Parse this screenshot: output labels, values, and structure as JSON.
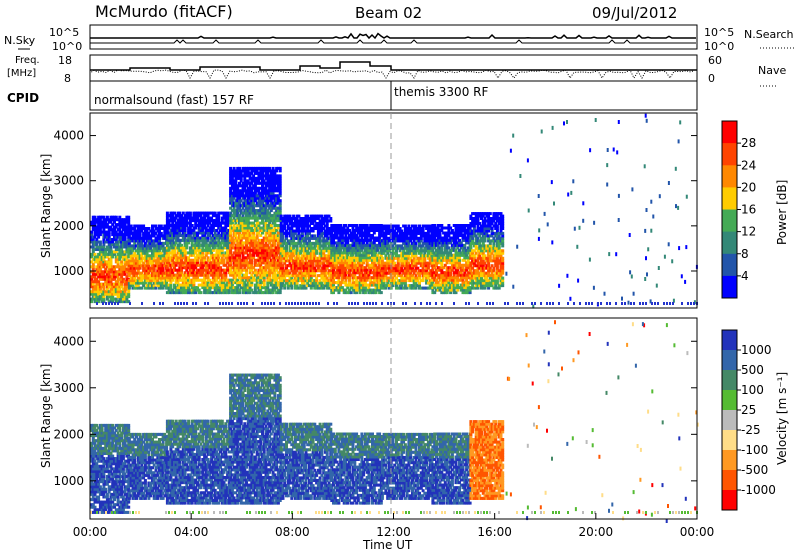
{
  "header": {
    "station": "McMurdo (fitACF)",
    "beam": "Beam 02",
    "date": "09/Jul/2012"
  },
  "noise_panel": {
    "left_label": "N.Sky",
    "right_label": "N.Search",
    "left_ticks": [
      "10^5",
      "10^0"
    ],
    "right_ticks": [
      "10^5",
      "10^0"
    ]
  },
  "freq_panel": {
    "left_label": "Freq.",
    "left_unit": "[MHz]",
    "left_ticks": [
      "18",
      "8"
    ],
    "right_label": "Nave",
    "right_ticks": [
      "60",
      "0"
    ]
  },
  "cpid": {
    "label": "CPID",
    "segments": [
      {
        "name": "normalsound (fast) 157 RF",
        "start_hour": 0
      },
      {
        "name": "themis 3300 RF",
        "start_hour": 12
      }
    ]
  },
  "chart_data": [
    {
      "type": "heatmap",
      "name": "power",
      "ylabel": "Slant Range [km]",
      "xlabel": "Time UT",
      "xlim": [
        0,
        24
      ],
      "ylim": [
        180,
        4500
      ],
      "yticks": [
        "1000",
        "2000",
        "3000",
        "4000"
      ],
      "colorbar": {
        "label": "Power [dB]",
        "ticks": [
          "28",
          "24",
          "20",
          "16",
          "12",
          "8",
          "4"
        ],
        "colors": [
          "#ff0000",
          "#ff4400",
          "#ff8800",
          "#ffcc00",
          "#44aa55",
          "#338877",
          "#2255aa",
          "#0000ff"
        ]
      },
      "echo_regions": [
        {
          "t0": 0.0,
          "t1": 1.5,
          "r0": 300,
          "r1": 2200
        },
        {
          "t0": 1.5,
          "t1": 3.0,
          "r0": 600,
          "r1": 2000
        },
        {
          "t0": 3.0,
          "t1": 5.5,
          "r0": 500,
          "r1": 2300
        },
        {
          "t0": 5.5,
          "t1": 7.5,
          "r0": 500,
          "r1": 3300
        },
        {
          "t0": 7.5,
          "t1": 9.5,
          "r0": 600,
          "r1": 2200
        },
        {
          "t0": 9.5,
          "t1": 11.5,
          "r0": 500,
          "r1": 2000
        },
        {
          "t0": 11.5,
          "t1": 13.5,
          "r0": 600,
          "r1": 2000
        },
        {
          "t0": 13.5,
          "t1": 15.0,
          "r0": 500,
          "r1": 2000
        },
        {
          "t0": 15.0,
          "t1": 16.3,
          "r0": 600,
          "r1": 2300
        }
      ],
      "scatter_range_hours": [
        16.3,
        24
      ]
    },
    {
      "type": "heatmap",
      "name": "velocity",
      "ylabel": "Slant Range [km]",
      "xlabel": "Time UT",
      "xlim": [
        0,
        24
      ],
      "ylim": [
        180,
        4500
      ],
      "yticks": [
        "1000",
        "2000",
        "3000",
        "4000"
      ],
      "colorbar": {
        "label": "Velocity [m s⁻¹]",
        "ticks": [
          "1000",
          "500",
          "100",
          "25",
          "-25",
          "-100",
          "-500",
          "-1000"
        ],
        "colors": [
          "#2233bb",
          "#3366aa",
          "#448866",
          "#55bb33",
          "#bbbbbb",
          "#ffdd88",
          "#ff9922",
          "#ff5500",
          "#ff0000"
        ]
      },
      "xticks": [
        "00:00",
        "04:00",
        "08:00",
        "12:00",
        "16:00",
        "20:00",
        "00:00"
      ]
    }
  ]
}
